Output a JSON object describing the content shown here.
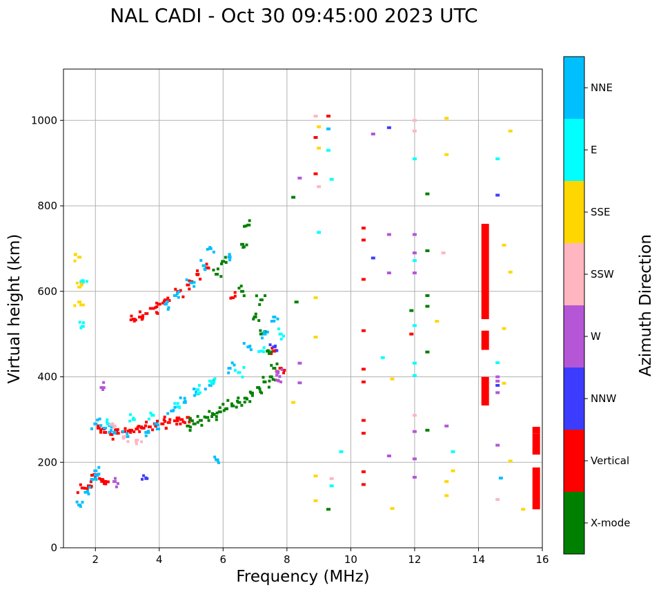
{
  "chart_data": {
    "type": "scatter",
    "title": "NAL CADI - Oct 30 09:45:00 2023 UTC",
    "xlabel": "Frequency (MHz)",
    "ylabel": "Virtual height (km)",
    "xlim": [
      1,
      16
    ],
    "ylim": [
      0,
      1120
    ],
    "xticks": [
      2,
      4,
      6,
      8,
      10,
      12,
      14,
      16
    ],
    "yticks": [
      0,
      200,
      400,
      600,
      800,
      1000
    ],
    "grid": true,
    "colorbar": {
      "label": "Azimuth Direction",
      "categories": [
        {
          "name": "X-mode",
          "color": "#008000"
        },
        {
          "name": "Vertical",
          "color": "#ff0000"
        },
        {
          "name": "NNW",
          "color": "#3c3cff"
        },
        {
          "name": "W",
          "color": "#b456d6"
        },
        {
          "name": "SSW",
          "color": "#ffb6c1"
        },
        {
          "name": "SSE",
          "color": "#ffd700"
        },
        {
          "name": "E",
          "color": "#00ffff"
        },
        {
          "name": "NNE",
          "color": "#00bfff"
        }
      ]
    },
    "bars": [
      {
        "f": 14.2,
        "h0": 535,
        "h1": 758,
        "dir": "Vertical"
      },
      {
        "f": 14.2,
        "h0": 463,
        "h1": 508,
        "dir": "Vertical"
      },
      {
        "f": 14.2,
        "h0": 333,
        "h1": 400,
        "dir": "Vertical"
      },
      {
        "f": 15.8,
        "h0": 218,
        "h1": 268,
        "dir": "Vertical"
      },
      {
        "f": 15.8,
        "h0": 90,
        "h1": 188,
        "dir": "Vertical"
      },
      {
        "f": 15.8,
        "h0": 268,
        "h1": 283,
        "dir": "Vertical"
      }
    ],
    "traces": [
      {
        "dir": "Vertical",
        "points": [
          [
            1.6,
            140
          ],
          [
            1.8,
            145
          ],
          [
            1.9,
            160
          ],
          [
            2.0,
            170
          ],
          [
            2.2,
            160
          ],
          [
            2.3,
            150
          ],
          [
            2.1,
            280
          ],
          [
            2.3,
            270
          ],
          [
            2.5,
            265
          ],
          [
            2.7,
            268
          ],
          [
            2.9,
            272
          ],
          [
            3.1,
            275
          ],
          [
            3.3,
            278
          ],
          [
            3.5,
            280
          ],
          [
            3.7,
            283
          ],
          [
            3.9,
            287
          ],
          [
            4.1,
            290
          ],
          [
            4.3,
            293
          ],
          [
            4.5,
            297
          ],
          [
            4.7,
            300
          ],
          [
            4.9,
            305
          ],
          [
            3.2,
            535
          ],
          [
            3.4,
            540
          ],
          [
            3.6,
            548
          ],
          [
            3.8,
            560
          ],
          [
            4.0,
            570
          ],
          [
            4.2,
            580
          ],
          [
            4.6,
            600
          ],
          [
            4.9,
            615
          ],
          [
            5.2,
            640
          ],
          [
            5.5,
            655
          ],
          [
            6.3,
            585
          ],
          [
            7.6,
            460
          ],
          [
            7.8,
            420
          ],
          [
            10.4,
            748
          ],
          [
            10.4,
            720
          ],
          [
            10.4,
            628
          ],
          [
            10.4,
            508
          ],
          [
            10.4,
            418
          ],
          [
            10.4,
            388
          ],
          [
            10.4,
            298
          ],
          [
            10.4,
            268
          ],
          [
            10.4,
            178
          ],
          [
            10.4,
            148
          ],
          [
            9.3,
            1010
          ],
          [
            8.9,
            960
          ],
          [
            8.9,
            875
          ],
          [
            11.9,
            500
          ]
        ]
      },
      {
        "dir": "X-mode",
        "points": [
          [
            4.9,
            285
          ],
          [
            5.1,
            290
          ],
          [
            5.3,
            298
          ],
          [
            5.5,
            305
          ],
          [
            5.7,
            312
          ],
          [
            5.9,
            318
          ],
          [
            6.1,
            325
          ],
          [
            6.3,
            332
          ],
          [
            6.5,
            340
          ],
          [
            6.7,
            350
          ],
          [
            6.9,
            362
          ],
          [
            7.1,
            375
          ],
          [
            7.3,
            388
          ],
          [
            7.5,
            400
          ],
          [
            7.6,
            420
          ],
          [
            7.4,
            460
          ],
          [
            7.2,
            500
          ],
          [
            7.0,
            540
          ],
          [
            7.2,
            580
          ],
          [
            6.6,
            600
          ],
          [
            5.8,
            640
          ],
          [
            6.0,
            670
          ],
          [
            6.6,
            710
          ],
          [
            6.8,
            755
          ],
          [
            8.2,
            820
          ],
          [
            8.3,
            575
          ],
          [
            12.4,
            590
          ],
          [
            12.4,
            565
          ],
          [
            12.4,
            458
          ],
          [
            12.4,
            695
          ],
          [
            12.4,
            828
          ],
          [
            12.4,
            275
          ],
          [
            9.3,
            90
          ],
          [
            11.9,
            555
          ]
        ]
      },
      {
        "dir": "NNE",
        "points": [
          [
            1.5,
            100
          ],
          [
            1.7,
            130
          ],
          [
            1.9,
            160
          ],
          [
            2.0,
            180
          ],
          [
            2.0,
            290
          ],
          [
            2.3,
            280
          ],
          [
            2.6,
            270
          ],
          [
            3.0,
            260
          ],
          [
            3.6,
            270
          ],
          [
            3.9,
            290
          ],
          [
            4.4,
            320
          ],
          [
            4.8,
            340
          ],
          [
            5.2,
            360
          ],
          [
            5.6,
            380
          ],
          [
            6.2,
            420
          ],
          [
            6.8,
            470
          ],
          [
            7.3,
            500
          ],
          [
            7.6,
            540
          ],
          [
            4.2,
            570
          ],
          [
            4.5,
            590
          ],
          [
            5.0,
            620
          ],
          [
            5.4,
            660
          ],
          [
            5.6,
            700
          ],
          [
            6.2,
            680
          ],
          [
            9.3,
            980
          ],
          [
            14.7,
            163
          ],
          [
            5.8,
            206
          ]
        ]
      },
      {
        "dir": "E",
        "points": [
          [
            1.6,
            625
          ],
          [
            1.6,
            518
          ],
          [
            2.4,
            290
          ],
          [
            3.2,
            300
          ],
          [
            3.8,
            310
          ],
          [
            4.6,
            330
          ],
          [
            5.2,
            370
          ],
          [
            5.6,
            390
          ],
          [
            6.5,
            410
          ],
          [
            7.2,
            460
          ],
          [
            7.8,
            500
          ],
          [
            9.0,
            738
          ],
          [
            9.4,
            862
          ],
          [
            9.3,
            930
          ],
          [
            11.0,
            445
          ],
          [
            12.0,
            403
          ],
          [
            12.0,
            432
          ],
          [
            12.0,
            520
          ],
          [
            12.0,
            672
          ],
          [
            12.0,
            910
          ],
          [
            13.2,
            225
          ],
          [
            14.6,
            433
          ],
          [
            14.6,
            910
          ],
          [
            9.7,
            225
          ],
          [
            9.4,
            145
          ]
        ]
      },
      {
        "dir": "W",
        "points": [
          [
            2.2,
            375
          ],
          [
            2.6,
            155
          ],
          [
            7.7,
            392
          ],
          [
            7.7,
            412
          ],
          [
            8.4,
            432
          ],
          [
            8.4,
            386
          ],
          [
            10.7,
            968
          ],
          [
            11.2,
            733
          ],
          [
            11.2,
            643
          ],
          [
            11.2,
            215
          ],
          [
            12.0,
            733
          ],
          [
            12.0,
            690
          ],
          [
            12.0,
            643
          ],
          [
            12.0,
            272
          ],
          [
            12.0,
            208
          ],
          [
            12.0,
            165
          ],
          [
            14.6,
            400
          ],
          [
            14.6,
            390
          ],
          [
            14.6,
            363
          ],
          [
            14.6,
            240
          ],
          [
            13.0,
            285
          ],
          [
            8.4,
            865
          ]
        ]
      },
      {
        "dir": "NNW",
        "points": [
          [
            3.6,
            162
          ],
          [
            7.6,
            470
          ],
          [
            10.7,
            678
          ],
          [
            11.2,
            983
          ],
          [
            14.6,
            825
          ],
          [
            14.6,
            380
          ]
        ]
      },
      {
        "dir": "SSW",
        "points": [
          [
            2.6,
            285
          ],
          [
            2.9,
            260
          ],
          [
            3.3,
            252
          ],
          [
            8.9,
            1010
          ],
          [
            9.0,
            845
          ],
          [
            12.0,
            1000
          ],
          [
            12.0,
            975
          ],
          [
            12.9,
            690
          ],
          [
            12.0,
            310
          ],
          [
            14.6,
            113
          ],
          [
            9.4,
            162
          ]
        ]
      },
      {
        "dir": "SSE",
        "points": [
          [
            1.5,
            680
          ],
          [
            1.5,
            610
          ],
          [
            1.5,
            575
          ],
          [
            8.2,
            340
          ],
          [
            8.9,
            585
          ],
          [
            8.9,
            493
          ],
          [
            8.9,
            168
          ],
          [
            8.9,
            110
          ],
          [
            9.0,
            985
          ],
          [
            9.0,
            935
          ],
          [
            12.7,
            530
          ],
          [
            13.0,
            1005
          ],
          [
            13.0,
            920
          ],
          [
            13.0,
            155
          ],
          [
            13.0,
            122
          ],
          [
            14.8,
            708
          ],
          [
            14.8,
            513
          ],
          [
            14.8,
            385
          ],
          [
            15.0,
            975
          ],
          [
            15.0,
            645
          ],
          [
            15.0,
            203
          ],
          [
            15.4,
            90
          ],
          [
            11.3,
            395
          ],
          [
            11.3,
            92
          ],
          [
            13.2,
            180
          ]
        ]
      }
    ]
  }
}
